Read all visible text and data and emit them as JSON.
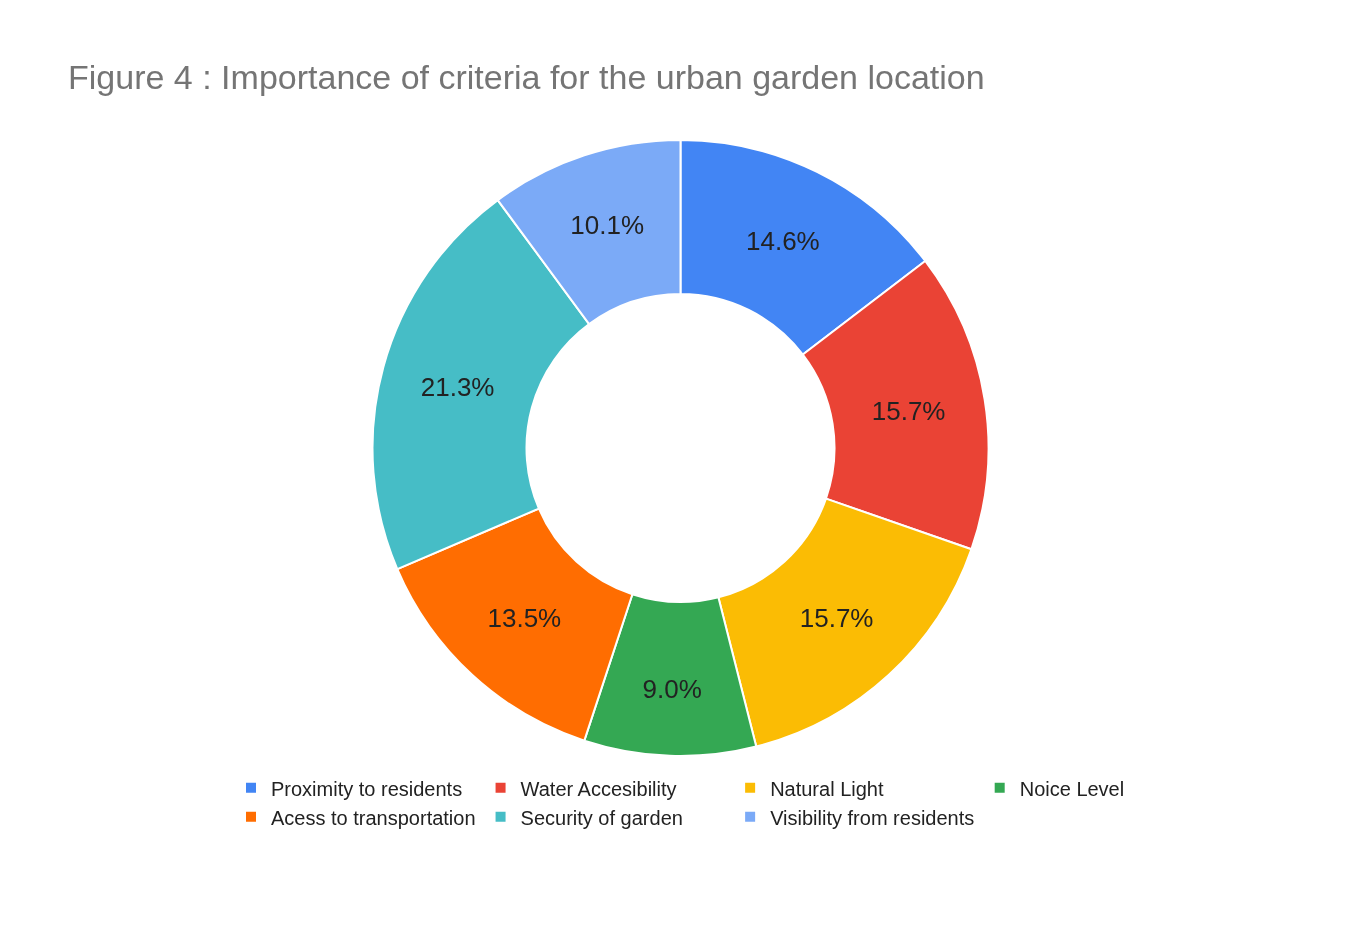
{
  "chart_data": {
    "type": "donut",
    "title": "Figure 4 : Importance of criteria for the urban garden location",
    "categories": [
      "Proximity to residents",
      "Water Accesibility",
      "Natural Light",
      "Noice Level",
      "Acess to transportation",
      "Security of garden",
      "Visibility from residents"
    ],
    "values": [
      14.6,
      15.7,
      15.7,
      9.0,
      13.5,
      21.3,
      10.1
    ],
    "value_labels": [
      "14.6%",
      "15.7%",
      "15.7%",
      "9.0%",
      "13.5%",
      "21.3%",
      "10.1%"
    ],
    "colors": [
      "#4285f4",
      "#ea4335",
      "#fbbc04",
      "#34a853",
      "#ff6d01",
      "#46bdc6",
      "#7baaf7"
    ],
    "legend": "bottom"
  }
}
